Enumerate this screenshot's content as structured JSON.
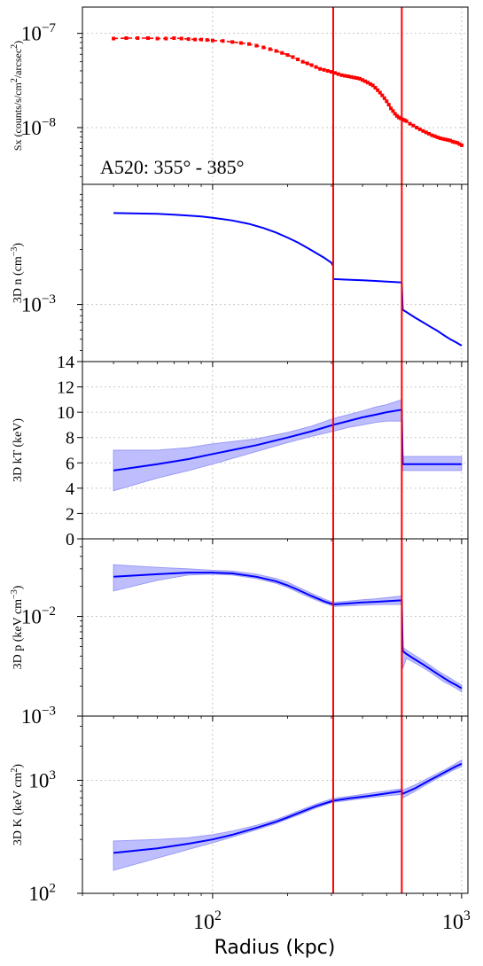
{
  "chart_data": [
    {
      "type": "scatter",
      "panel": "sx",
      "ylabel_main": "Sx (counts/s/cm",
      "ylabel_sup1": "2",
      "ylabel_mid": "/arcsec",
      "ylabel_sup2": "2",
      "ylabel_end": ")",
      "annotation": "A520: 355° - 385°",
      "yscale": "log",
      "ylim": [
        2.5e-09,
        1.9e-07
      ],
      "ticks": [
        {
          "value": 1e-07,
          "base": "10",
          "exp": "−7"
        },
        {
          "value": 1e-08,
          "base": "10",
          "exp": "−8"
        }
      ],
      "color": "#ff0000",
      "series": [
        {
          "x": [
            40,
            45,
            50,
            55,
            60,
            65,
            70,
            75,
            80,
            85,
            90,
            95,
            100,
            110,
            120,
            130,
            140,
            150,
            160,
            170,
            180,
            190,
            200,
            210,
            220,
            230,
            240,
            250,
            260,
            270,
            280,
            290,
            300,
            310,
            320,
            330,
            340,
            350,
            360,
            370,
            380,
            390,
            400,
            410,
            420,
            430,
            440,
            450,
            460,
            470,
            480,
            490,
            500,
            510,
            520,
            530,
            540,
            550,
            560,
            570,
            580,
            590,
            600,
            620,
            640,
            660,
            680,
            700,
            720,
            740,
            760,
            780,
            800,
            820,
            840,
            860,
            880,
            900,
            920,
            940,
            960,
            980,
            1000
          ],
          "y": [
            8.8e-08,
            8.9e-08,
            8.9e-08,
            8.9e-08,
            8.8e-08,
            8.8e-08,
            8.9e-08,
            8.8e-08,
            8.7e-08,
            8.6e-08,
            8.6e-08,
            8.5e-08,
            8.4e-08,
            8.3e-08,
            8.1e-08,
            7.9e-08,
            7.7e-08,
            7.4e-08,
            7.1e-08,
            6.8e-08,
            6.5e-08,
            6.2e-08,
            5.9e-08,
            5.6e-08,
            5.3e-08,
            5e-08,
            4.8e-08,
            4.6e-08,
            4.4e-08,
            4.2e-08,
            4.1e-08,
            4e-08,
            3.9e-08,
            3.8e-08,
            3.7e-08,
            3.6e-08,
            3.55e-08,
            3.5e-08,
            3.45e-08,
            3.4e-08,
            3.35e-08,
            3.3e-08,
            3.2e-08,
            3.1e-08,
            3e-08,
            2.9e-08,
            2.8e-08,
            2.65e-08,
            2.5e-08,
            2.35e-08,
            2.2e-08,
            2.05e-08,
            1.9e-08,
            1.75e-08,
            1.6e-08,
            1.5e-08,
            1.4e-08,
            1.33e-08,
            1.28e-08,
            1.25e-08,
            1.22e-08,
            1.2e-08,
            1.17e-08,
            1.1e-08,
            1.05e-08,
            1e-08,
            9.6e-09,
            9.2e-09,
            8.9e-09,
            8.6e-09,
            8.3e-09,
            8.1e-09,
            7.9e-09,
            7.7e-09,
            7.6e-09,
            7.5e-09,
            7.4e-09,
            7.3e-09,
            7.1e-09,
            7e-09,
            6.9e-09,
            6.7e-09,
            6.5e-09
          ]
        }
      ]
    },
    {
      "type": "line",
      "panel": "n",
      "ylabel_main": "3D n (cm",
      "ylabel_sup1": "−3",
      "ylabel_end": ")",
      "yscale": "log",
      "ylim": [
        0.00032,
        0.011
      ],
      "ticks": [
        {
          "value": 0.001,
          "base": "10",
          "exp": "−3"
        }
      ],
      "color": "#0000ff",
      "series": [
        {
          "x": [
            40,
            50,
            60,
            70,
            80,
            90,
            100,
            120,
            140,
            160,
            180,
            200,
            220,
            240,
            260,
            280,
            300,
            305
          ],
          "y": [
            0.0062,
            0.00615,
            0.0061,
            0.006,
            0.0059,
            0.0058,
            0.00565,
            0.00535,
            0.005,
            0.0046,
            0.0042,
            0.0038,
            0.00345,
            0.0031,
            0.0028,
            0.00255,
            0.0023,
            0.00215
          ]
        },
        {
          "x": [
            305,
            350,
            400,
            450,
            500,
            550,
            575
          ],
          "y": [
            0.00166,
            0.00164,
            0.00162,
            0.0016,
            0.00158,
            0.00156,
            0.00155
          ]
        },
        {
          "x": [
            575,
            580,
            600,
            650,
            700,
            750,
            800,
            850,
            900,
            950,
            1000
          ],
          "y": [
            0.00155,
            0.0009,
            0.00086,
            0.00077,
            0.0007,
            0.00064,
            0.00059,
            0.00054,
            0.0005,
            0.00047,
            0.00044
          ]
        }
      ]
    },
    {
      "type": "line",
      "panel": "kT",
      "ylabel_main": "3D kT (keV)",
      "yscale": "linear",
      "ylim": [
        0,
        14
      ],
      "ticks": [
        {
          "value": 0,
          "label": "0"
        },
        {
          "value": 2,
          "label": "2"
        },
        {
          "value": 4,
          "label": "4"
        },
        {
          "value": 6,
          "label": "6"
        },
        {
          "value": 8,
          "label": "8"
        },
        {
          "value": 10,
          "label": "10"
        },
        {
          "value": 12,
          "label": "12"
        },
        {
          "value": 14,
          "label": "14"
        }
      ],
      "color": "#0000ff",
      "band_color": "#b3b3ff",
      "series": [
        {
          "x": [
            40,
            60,
            80,
            100,
            150,
            200,
            250,
            305,
            350,
            400,
            450,
            500,
            575
          ],
          "y": [
            5.4,
            5.9,
            6.3,
            6.7,
            7.4,
            8.0,
            8.5,
            9.0,
            9.3,
            9.6,
            9.8,
            10.0,
            10.2
          ],
          "lo": [
            3.8,
            4.8,
            5.4,
            5.9,
            6.9,
            7.6,
            8.1,
            8.5,
            8.8,
            9.0,
            9.2,
            9.3,
            9.3
          ],
          "hi": [
            7.0,
            7.0,
            7.2,
            7.5,
            7.9,
            8.4,
            8.9,
            9.5,
            9.8,
            10.1,
            10.4,
            10.6,
            11.0
          ]
        },
        {
          "x": [
            575,
            580,
            600,
            700,
            800,
            900,
            1000
          ],
          "y": [
            10.2,
            5.9,
            5.9,
            5.9,
            5.9,
            5.9,
            5.9
          ],
          "lo": [
            9.3,
            5.4,
            5.4,
            5.4,
            5.4,
            5.4,
            5.4
          ],
          "hi": [
            11.0,
            6.5,
            6.5,
            6.5,
            6.5,
            6.5,
            6.5
          ]
        }
      ]
    },
    {
      "type": "line",
      "panel": "p",
      "ylabel_main": "3D p (keV cm",
      "ylabel_sup1": "−3",
      "ylabel_end": ")",
      "yscale": "log",
      "ylim": [
        0.001,
        0.06
      ],
      "ticks": [
        {
          "value": 0.01,
          "base": "10",
          "exp": "−2"
        },
        {
          "value": 0.001,
          "base": "10",
          "exp": "−3"
        }
      ],
      "color": "#0000ff",
      "band_color": "#b3b3ff",
      "series": [
        {
          "x": [
            40,
            60,
            80,
            100,
            120,
            150,
            180,
            200,
            220,
            250,
            280,
            305
          ],
          "y": [
            0.025,
            0.0265,
            0.0275,
            0.0275,
            0.027,
            0.025,
            0.0225,
            0.0205,
            0.0185,
            0.016,
            0.0142,
            0.0132
          ],
          "lo": [
            0.018,
            0.023,
            0.026,
            0.0265,
            0.026,
            0.024,
            0.0215,
            0.0195,
            0.0175,
            0.0152,
            0.0136,
            0.0127
          ],
          "hi": [
            0.033,
            0.031,
            0.03,
            0.029,
            0.0285,
            0.0265,
            0.024,
            0.022,
            0.0197,
            0.017,
            0.015,
            0.0138
          ]
        },
        {
          "x": [
            305,
            350,
            400,
            450,
            500,
            575
          ],
          "y": [
            0.0132,
            0.0135,
            0.0138,
            0.014,
            0.0142,
            0.0145
          ],
          "lo": [
            0.0126,
            0.0128,
            0.013,
            0.0131,
            0.0132,
            0.0132
          ],
          "hi": [
            0.0138,
            0.0142,
            0.0147,
            0.015,
            0.0154,
            0.016
          ]
        },
        {
          "x": [
            575,
            580,
            600,
            650,
            700,
            750,
            800,
            850,
            900,
            950,
            1000
          ],
          "y": [
            0.0145,
            0.0045,
            0.0042,
            0.0037,
            0.0033,
            0.00295,
            0.00265,
            0.0024,
            0.0022,
            0.00205,
            0.0019
          ],
          "lo": [
            0.0132,
            0.003,
            0.0038,
            0.0034,
            0.00305,
            0.00275,
            0.00245,
            0.0022,
            0.00205,
            0.0019,
            0.00175
          ],
          "hi": [
            0.016,
            0.0049,
            0.0046,
            0.00405,
            0.0036,
            0.0032,
            0.00285,
            0.0026,
            0.0024,
            0.0022,
            0.00205
          ]
        }
      ]
    },
    {
      "type": "line",
      "panel": "K",
      "ylabel_main": "3D K (keV cm",
      "ylabel_sup1": "2",
      "ylabel_end": ")",
      "xlabel": "Radius (kpc)",
      "yscale": "log",
      "ylim": [
        100,
        3700
      ],
      "ticks": [
        {
          "value": 100,
          "base": "10",
          "exp": "2"
        },
        {
          "value": 1000,
          "base": "10",
          "exp": "3"
        }
      ],
      "xticks": [
        {
          "value": 100,
          "base": "10",
          "exp": "2"
        },
        {
          "value": 1000,
          "base": "10",
          "exp": "3"
        }
      ],
      "color": "#0000ff",
      "band_color": "#b3b3ff",
      "series": [
        {
          "x": [
            40,
            60,
            80,
            100,
            120,
            150,
            180,
            200,
            230,
            260,
            305
          ],
          "y": [
            228,
            250,
            275,
            300,
            330,
            380,
            430,
            470,
            530,
            590,
            660
          ],
          "lo": [
            160,
            205,
            245,
            280,
            315,
            365,
            415,
            455,
            510,
            570,
            640
          ],
          "hi": [
            290,
            300,
            310,
            330,
            355,
            400,
            450,
            490,
            555,
            615,
            690
          ]
        },
        {
          "x": [
            305,
            350,
            400,
            450,
            500,
            575
          ],
          "y": [
            660,
            690,
            715,
            740,
            765,
            800
          ],
          "lo": [
            640,
            665,
            690,
            710,
            730,
            750
          ],
          "hi": [
            690,
            720,
            750,
            780,
            805,
            840
          ]
        },
        {
          "x": [
            575,
            580,
            650,
            700,
            750,
            800,
            850,
            900,
            950,
            1000
          ],
          "y": [
            800,
            760,
            850,
            930,
            1010,
            1090,
            1170,
            1250,
            1330,
            1400
          ],
          "lo": [
            750,
            700,
            800,
            880,
            960,
            1040,
            1110,
            1190,
            1260,
            1320
          ],
          "hi": [
            840,
            820,
            910,
            990,
            1070,
            1150,
            1230,
            1320,
            1410,
            1510
          ]
        }
      ]
    }
  ],
  "shared": {
    "xscale": "log",
    "xlim": [
      30,
      1060
    ],
    "minor_xticks": [
      30,
      40,
      50,
      60,
      70,
      80,
      90,
      200,
      300,
      400,
      500,
      600,
      700,
      800,
      900
    ],
    "vlines": [
      305,
      575
    ],
    "vline_color": "#ff0000",
    "grid": true
  }
}
